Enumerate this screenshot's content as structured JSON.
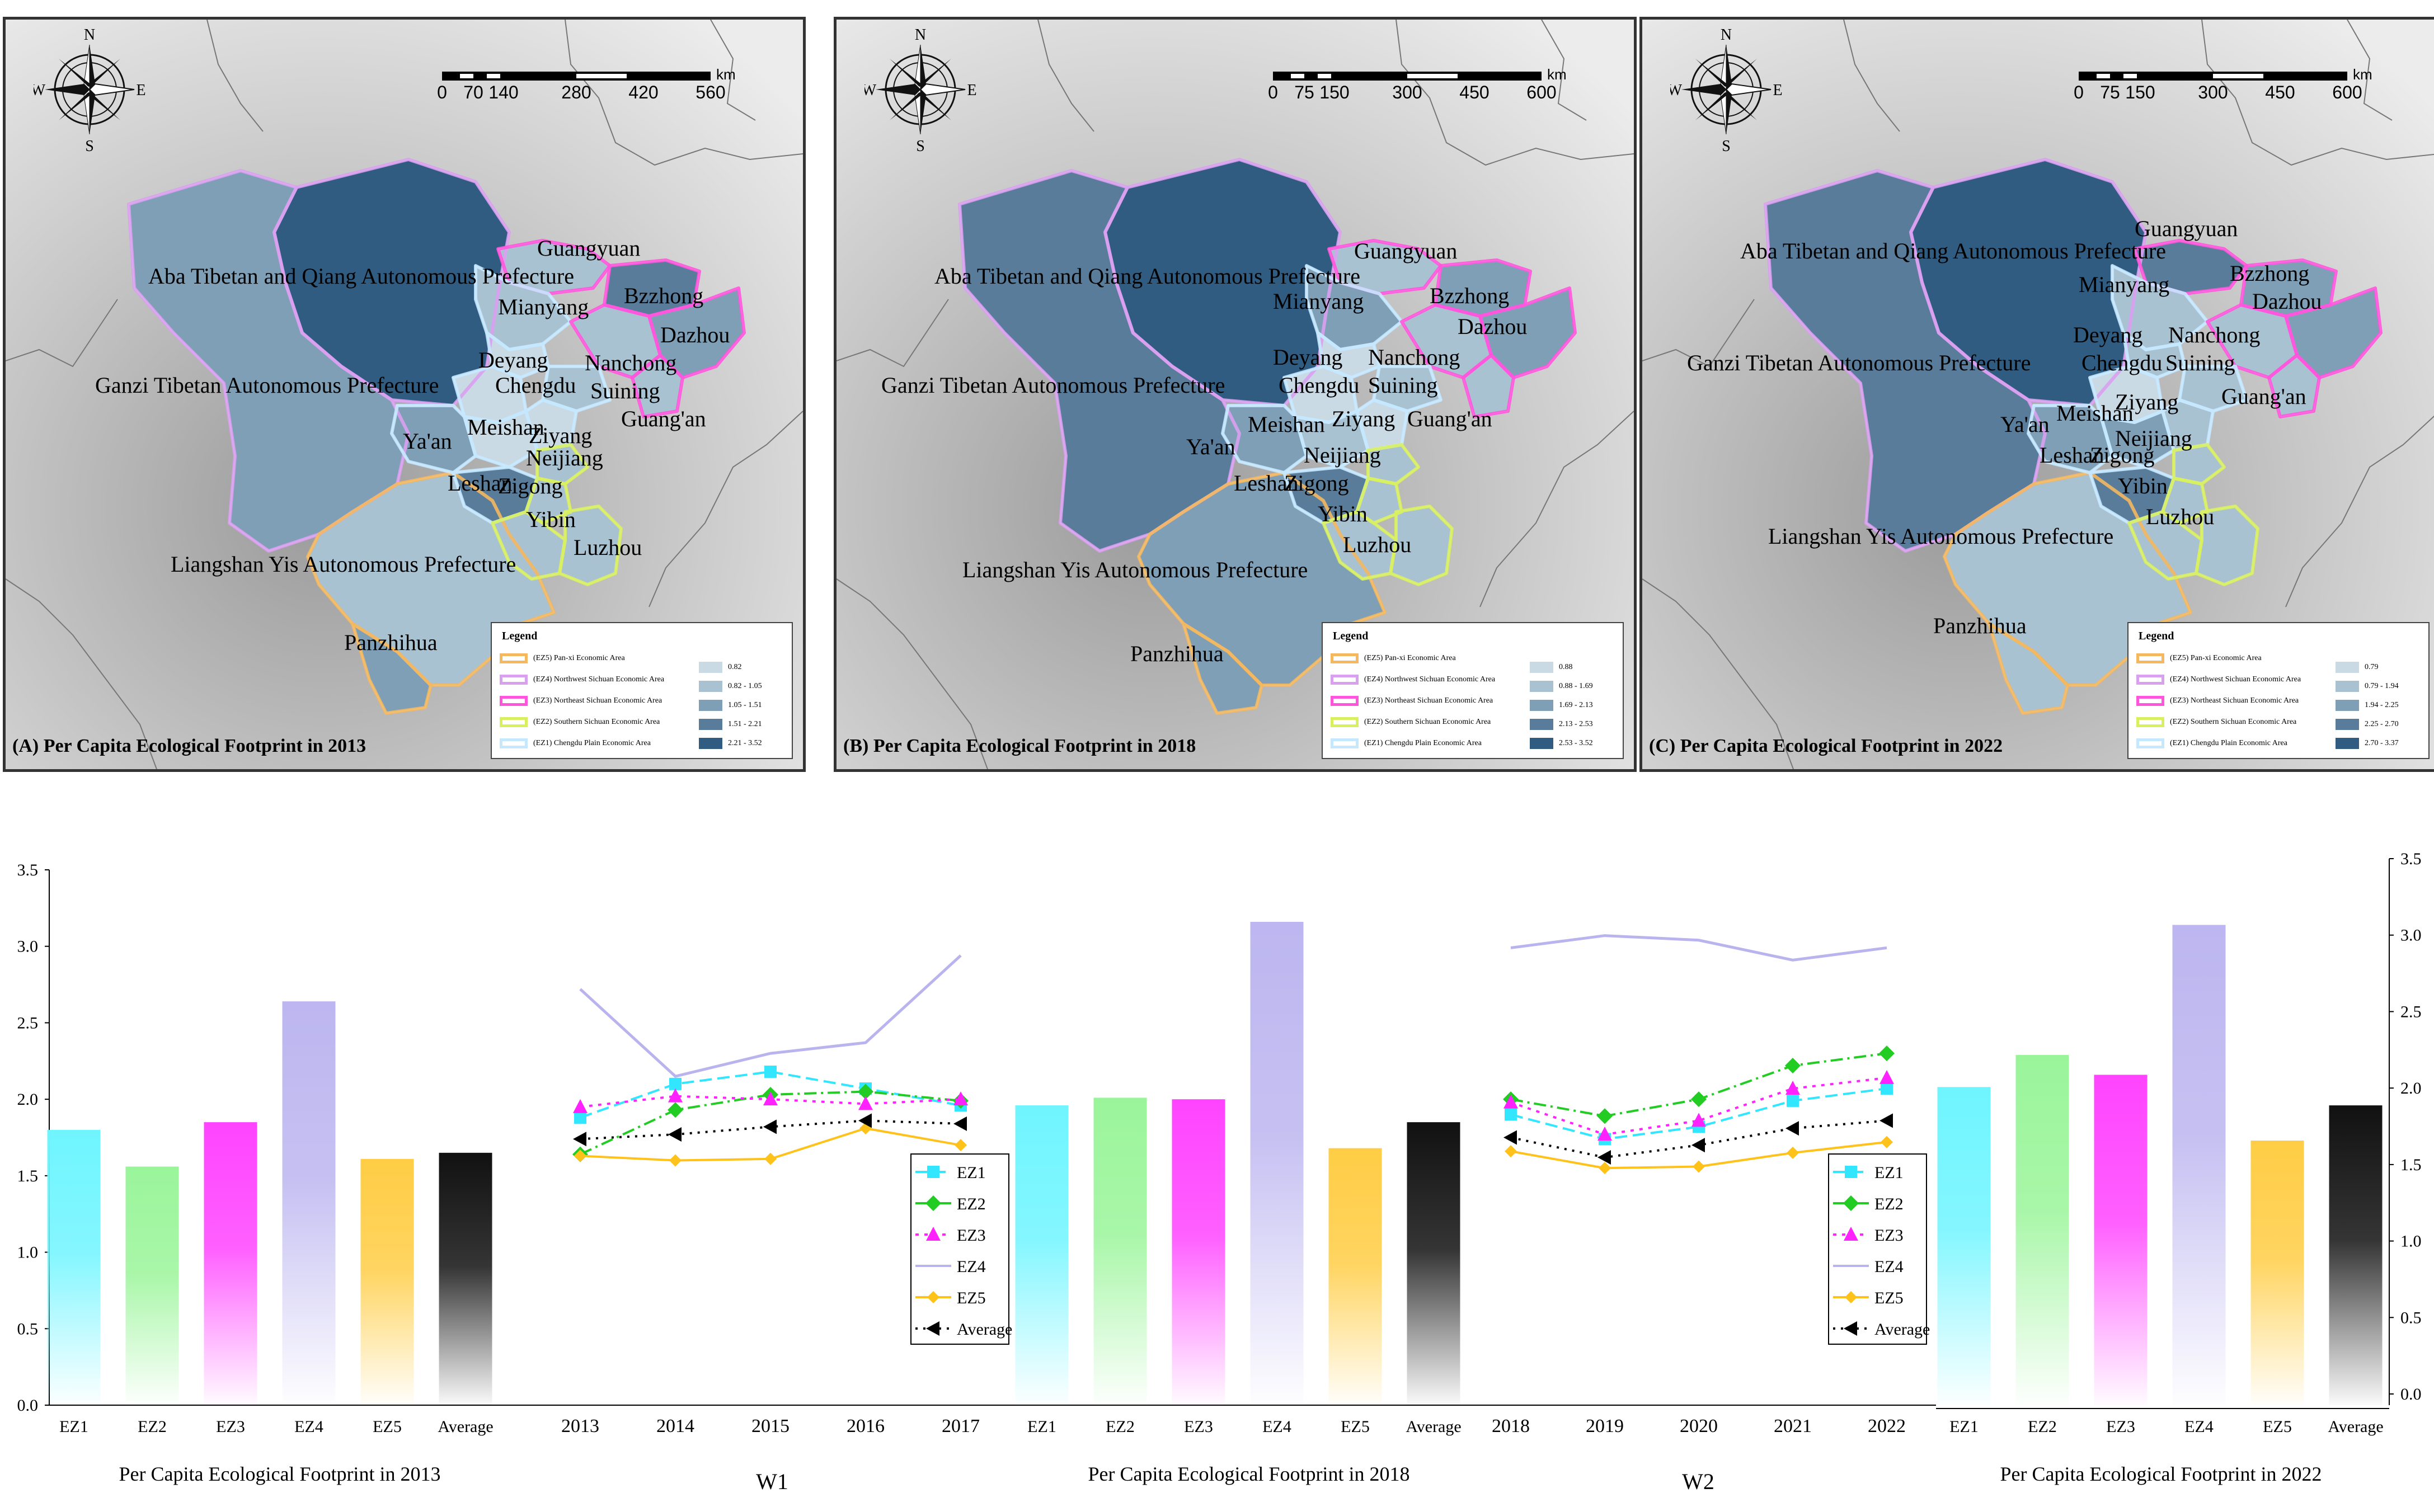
{
  "panels": [
    {
      "id": "A",
      "title": "(A) Per Capita Ecological Footprint in 2013",
      "compass": {
        "n": "N",
        "s": "S",
        "e": "E",
        "w": "W"
      },
      "scale": {
        "ticks": [
          "0",
          "70",
          "140",
          "280",
          "420",
          "560"
        ],
        "unit": "km"
      },
      "legend": {
        "title": "Legend",
        "areas": [
          "(EZ5) Pan-xi Economic Area",
          "(EZ4) Northwest Sichuan Economic Area",
          "(EZ3) Northeast Sichuan Economic Area",
          "(EZ2) Southern Sichuan Economic Area",
          "(EZ1) Chengdu Plain Economic Area"
        ],
        "ranges": [
          "0.82",
          "0.82 - 1.05",
          "1.05 - 1.51",
          "1.51 - 2.21",
          "2.21 - 3.52"
        ]
      },
      "labels": [
        "Aba Tibetan and Qiang Autonomous Prefecture",
        "Ganzi Tibetan Autonomous Prefecture",
        "Liangshan Yis Autonomous Prefecture",
        "Guangyuan",
        "Mianyang",
        "Bzzhong",
        "Dazhou",
        "Deyang",
        "Chengdu",
        "Nanchong",
        "Suining",
        "Guang'an",
        "Meishan",
        "Ziyang",
        "Ya'an",
        "Neijiang",
        "Leshan",
        "Zigong",
        "Yibin",
        "Luzhou",
        "Panzhihua"
      ]
    },
    {
      "id": "B",
      "title": "(B) Per Capita Ecological Footprint in 2018",
      "compass": {
        "n": "N",
        "s": "S",
        "e": "E",
        "w": "W"
      },
      "scale": {
        "ticks": [
          "0",
          "75",
          "150",
          "300",
          "450",
          "600"
        ],
        "unit": "km"
      },
      "legend": {
        "title": "Legend",
        "areas": [
          "(EZ5) Pan-xi Economic Area",
          "(EZ4) Northwest Sichuan Economic Area",
          "(EZ3) Northeast Sichuan Economic Area",
          "(EZ2) Southern Sichuan Economic Area",
          "(EZ1) Chengdu Plain Economic Area"
        ],
        "ranges": [
          "0.88",
          "0.88 - 1.69",
          "1.69 - 2.13",
          "2.13 - 2.53",
          "2.53 - 3.52"
        ]
      },
      "labels": [
        "Aba Tibetan and Qiang Autonomous Prefecture",
        "Ganzi Tibetan Autonomous Prefecture",
        "Liangshan Yis Autonomous Prefecture",
        "Guangyuan",
        "Mianyang",
        "Bzzhong",
        "Dazhou",
        "Deyang",
        "Chengdu",
        "Nanchong",
        "Suining",
        "Guang'an",
        "Meishan",
        "Ziyang",
        "Ya'an",
        "Neijiang",
        "Leshan",
        "Zigong",
        "Yibin",
        "Luzhou",
        "Panzhihua"
      ]
    },
    {
      "id": "C",
      "title": "(C) Per Capita Ecological Footprint in 2022",
      "compass": {
        "n": "N",
        "s": "S",
        "e": "E",
        "w": "W"
      },
      "scale": {
        "ticks": [
          "0",
          "75",
          "150",
          "300",
          "450",
          "600"
        ],
        "unit": "km"
      },
      "legend": {
        "title": "Legend",
        "areas": [
          "(EZ5) Pan-xi Economic Area",
          "(EZ4) Northwest Sichuan Economic Area",
          "(EZ3) Northeast Sichuan Economic Area",
          "(EZ2) Southern Sichuan Economic Area",
          "(EZ1) Chengdu Plain Economic Area"
        ],
        "ranges": [
          "0.79",
          "0.79 - 1.94",
          "1.94 - 2.25",
          "2.25 - 2.70",
          "2.70 - 3.37"
        ]
      },
      "labels": [
        "Aba Tibetan and Qiang Autonomous Prefecture",
        "Ganzi Tibetan Autonomous Prefecture",
        "Liangshan Yis Autonomous Prefecture",
        "Guangyuan",
        "Mianyang",
        "Bzzhong",
        "Dazhou",
        "Deyang",
        "Chengdu",
        "Nanchong",
        "Suining",
        "Guang'an",
        "Meishan",
        "Ziyang",
        "Ya'an",
        "Neijiang",
        "Leshan",
        "Zigong",
        "Yibin",
        "Luzhou",
        "Panzhihua"
      ]
    }
  ],
  "colors": {
    "EZ1": "#33e6ff",
    "EZ2": "#22cc22",
    "EZ3": "#ff22ff",
    "EZ4": "#b9b3ee",
    "EZ5": "#ffc21a",
    "Average": "#000000",
    "bar_EZ1": "#6ff5ff",
    "bar_EZ2": "#9af59a",
    "bar_EZ3": "#ff44ff",
    "bar_EZ4": "#bdb6f0",
    "bar_EZ5": "#ffcd45",
    "bar_Average": "#111111",
    "border_EZ1": "#c5e8ff",
    "border_EZ2": "#d8f060",
    "border_EZ3": "#ff55dd",
    "border_EZ4": "#d9a0f0",
    "border_EZ5": "#f3b860",
    "fill1": "#c9dae5",
    "fill2": "#a9c2d2",
    "fill3": "#7f9fb7",
    "fill4": "#587c9a",
    "fill5": "#2f5c80"
  },
  "chart_data": [
    {
      "type": "bar",
      "title": "Per Capita Ecological Footprint in 2013",
      "categories": [
        "EZ1",
        "EZ2",
        "EZ3",
        "EZ4",
        "EZ5",
        "Average"
      ],
      "values": [
        1.8,
        1.56,
        1.85,
        2.64,
        1.61,
        1.65
      ],
      "ylim": [
        0,
        3.5
      ],
      "yticks": [
        "0.0",
        "0.5",
        "1.0",
        "1.5",
        "2.0",
        "2.5",
        "3.0",
        "3.5"
      ]
    },
    {
      "type": "line",
      "title": "W1",
      "x": [
        "2013",
        "2014",
        "2015",
        "2016",
        "2017"
      ],
      "series": [
        {
          "name": "EZ1",
          "values": [
            1.88,
            2.1,
            2.18,
            2.07,
            1.96
          ]
        },
        {
          "name": "EZ2",
          "values": [
            1.64,
            1.93,
            2.03,
            2.05,
            1.99
          ]
        },
        {
          "name": "EZ3",
          "values": [
            1.95,
            2.02,
            2.0,
            1.97,
            2.0
          ]
        },
        {
          "name": "EZ4",
          "values": [
            2.72,
            2.15,
            2.3,
            2.37,
            2.94
          ]
        },
        {
          "name": "EZ5",
          "values": [
            1.63,
            1.6,
            1.61,
            1.81,
            1.7
          ]
        },
        {
          "name": "Average",
          "values": [
            1.74,
            1.77,
            1.82,
            1.86,
            1.84
          ]
        }
      ],
      "ylim": [
        0,
        3.5
      ],
      "legend": [
        "EZ1",
        "EZ2",
        "EZ3",
        "EZ4",
        "EZ5",
        "Average"
      ]
    },
    {
      "type": "bar",
      "title": "Per Capita Ecological Footprint in 2018",
      "categories": [
        "EZ1",
        "EZ2",
        "EZ3",
        "EZ4",
        "EZ5",
        "Average"
      ],
      "values": [
        1.96,
        2.01,
        2.0,
        3.16,
        1.68,
        1.85
      ],
      "ylim": [
        0,
        3.5
      ]
    },
    {
      "type": "line",
      "title": "W2",
      "x": [
        "2018",
        "2019",
        "2020",
        "2021",
        "2022"
      ],
      "series": [
        {
          "name": "EZ1",
          "values": [
            1.9,
            1.74,
            1.82,
            1.99,
            2.07
          ]
        },
        {
          "name": "EZ2",
          "values": [
            2.0,
            1.89,
            2.0,
            2.22,
            2.3
          ]
        },
        {
          "name": "EZ3",
          "values": [
            1.98,
            1.77,
            1.86,
            2.07,
            2.14
          ]
        },
        {
          "name": "EZ4",
          "values": [
            2.99,
            3.07,
            3.04,
            2.91,
            2.99
          ]
        },
        {
          "name": "EZ5",
          "values": [
            1.66,
            1.55,
            1.56,
            1.65,
            1.72
          ]
        },
        {
          "name": "Average",
          "values": [
            1.75,
            1.62,
            1.7,
            1.81,
            1.86
          ]
        }
      ],
      "ylim": [
        0,
        3.5
      ],
      "legend": [
        "EZ1",
        "EZ2",
        "EZ3",
        "EZ4",
        "EZ5",
        "Average"
      ]
    },
    {
      "type": "bar",
      "title": "Per Capita Ecological Footprint in 2022",
      "categories": [
        "EZ1",
        "EZ2",
        "EZ3",
        "EZ4",
        "EZ5",
        "Average"
      ],
      "values": [
        2.08,
        2.29,
        2.16,
        3.14,
        1.73,
        1.96
      ],
      "ylim": [
        0,
        3.5
      ],
      "yticks": [
        "0.0",
        "0.5",
        "1.0",
        "1.5",
        "2.0",
        "2.5",
        "3.0",
        "3.5"
      ]
    }
  ]
}
